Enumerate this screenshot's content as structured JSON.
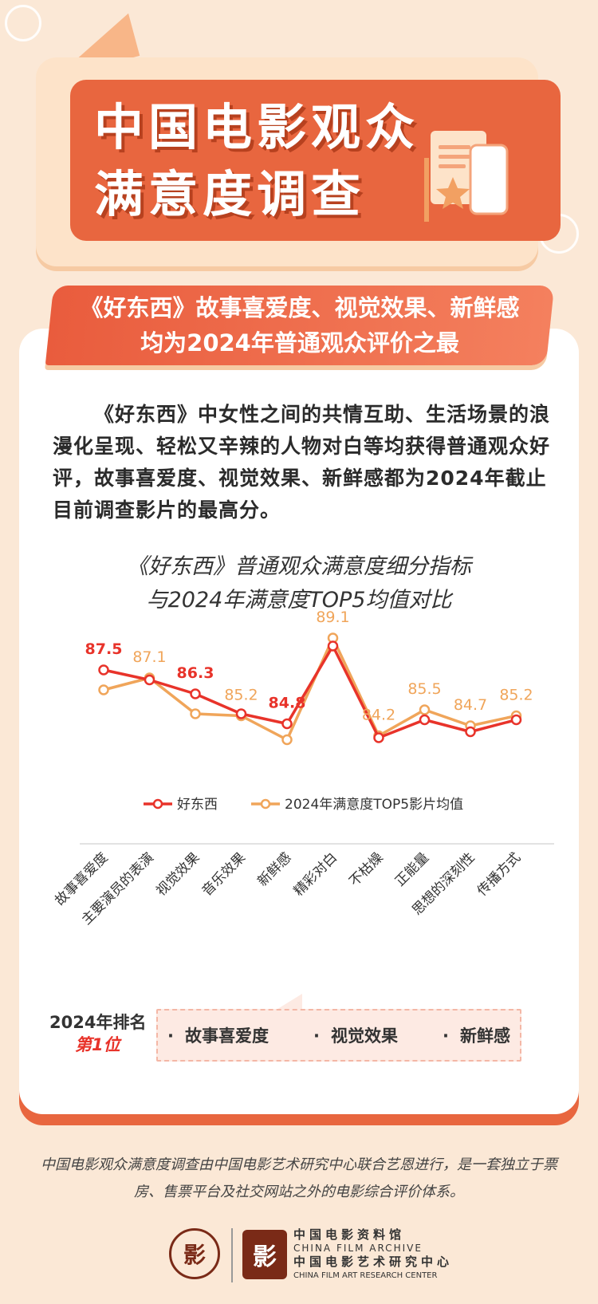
{
  "header": {
    "title_line1": "中国电影观众",
    "title_line2": "满意度调查"
  },
  "banner": {
    "line1": "《好东西》故事喜爱度、视觉效果、新鲜感",
    "line2": "均为2024年普通观众评价之最"
  },
  "paragraph": "《好东西》中女性之间的共情互助、生活场景的浪漫化呈现、轻松又辛辣的人物对白等均获得普通观众好评，故事喜爱度、视觉效果、新鲜感都为2024年截止目前调查影片的最高分。",
  "chart_title": {
    "line1": "《好东西》普通观众满意度细分指标",
    "line2": "与2024年满意度TOP5均值对比"
  },
  "chart_data": {
    "type": "line",
    "categories": [
      "故事喜爱度",
      "主要演员的表演",
      "视觉效果",
      "音乐效果",
      "新鲜感",
      "精彩对白",
      "不枯燥",
      "正能量",
      "思想的深刻性",
      "传播方式"
    ],
    "series": [
      {
        "name": "好东西",
        "color": "#e8332a",
        "values": [
          87.5,
          87.0,
          86.3,
          85.3,
          84.8,
          88.7,
          84.1,
          85.0,
          84.4,
          85.0
        ]
      },
      {
        "name": "2024年满意度TOP5影片均值",
        "color": "#f0a55a",
        "values": [
          86.5,
          87.1,
          85.3,
          85.2,
          84.0,
          89.1,
          84.2,
          85.5,
          84.7,
          85.2
        ]
      }
    ],
    "labels": [
      {
        "series": 0,
        "index": 0,
        "text": "87.5"
      },
      {
        "series": 1,
        "index": 1,
        "text": "87.1"
      },
      {
        "series": 0,
        "index": 2,
        "text": "86.3"
      },
      {
        "series": 1,
        "index": 3,
        "text": "85.2"
      },
      {
        "series": 0,
        "index": 4,
        "text": "84.8"
      },
      {
        "series": 1,
        "index": 5,
        "text": "89.1"
      },
      {
        "series": 1,
        "index": 6,
        "text": "84.2"
      },
      {
        "series": 1,
        "index": 7,
        "text": "85.5"
      },
      {
        "series": 1,
        "index": 8,
        "text": "84.7"
      },
      {
        "series": 1,
        "index": 9,
        "text": "85.2"
      }
    ],
    "ylim": [
      83.5,
      89.5
    ],
    "legend_position": "bottom-center"
  },
  "ranking": {
    "label": "2024年排名",
    "position": "第1位",
    "items": [
      "故事喜爱度",
      "视觉效果",
      "新鲜感"
    ]
  },
  "footer": {
    "text": "中国电影观众满意度调查由中国电影艺术研究中心联合艺恩进行，是一套独立于票房、售票平台及社交网站之外的电影综合评价体系。",
    "logo_cn1": "中国电影资料馆",
    "logo_en1": "CHINA FILM ARCHIVE",
    "logo_cn2": "中国电影艺术研究中心",
    "logo_en2": "CHINA FILM ART RESEARCH CENTER"
  },
  "colors": {
    "accent": "#e8663f",
    "background": "#fbe8d6",
    "red_series": "#e8332a",
    "orange_series": "#f0a55a"
  },
  "icons": [
    "paper-plane-icon",
    "document-star-phone-icon",
    "archive-logo-icon"
  ]
}
